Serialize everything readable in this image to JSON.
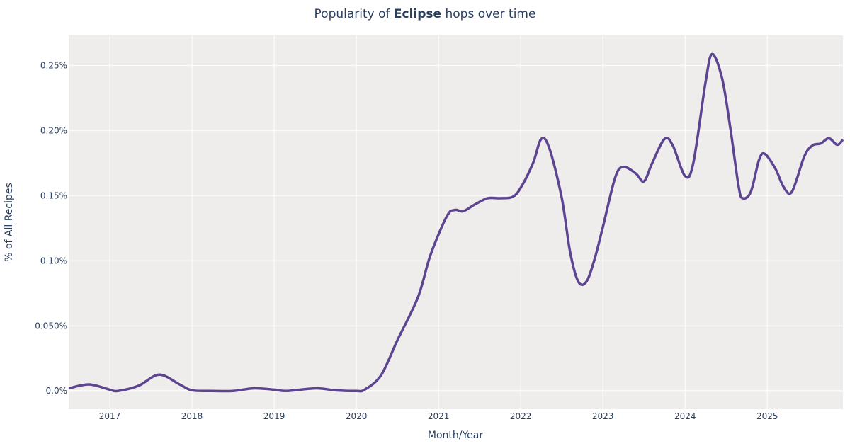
{
  "chart_data": {
    "type": "line",
    "title": [
      "Popularity of ",
      "Eclipse",
      " hops over time"
    ],
    "x_label": "Month/Year",
    "y_label": "% of All Recipes",
    "xlim": [
      2016.5,
      2025.92
    ],
    "xticks": [
      2017,
      2018,
      2019,
      2020,
      2021,
      2022,
      2023,
      2024,
      2025
    ],
    "ylim": [
      -0.014,
      0.273
    ],
    "yticks": [
      {
        "value": 0,
        "label": "0.0%"
      },
      {
        "value": 0.05,
        "label": "0.050%"
      },
      {
        "value": 0.1,
        "label": "0.10%"
      },
      {
        "value": 0.15,
        "label": "0.15%"
      },
      {
        "value": 0.2,
        "label": "0.20%"
      },
      {
        "value": 0.25,
        "label": "0.25%"
      }
    ],
    "grid": true,
    "x": [
      2016.5,
      2016.75,
      2017.0,
      2017.1,
      2017.35,
      2017.6,
      2017.85,
      2018.0,
      2018.25,
      2018.5,
      2018.75,
      2019.0,
      2019.15,
      2019.5,
      2019.75,
      2020.0,
      2020.1,
      2020.3,
      2020.5,
      2020.75,
      2020.9,
      2021.1,
      2021.2,
      2021.3,
      2021.45,
      2021.6,
      2021.75,
      2021.9,
      2022.0,
      2022.15,
      2022.25,
      2022.35,
      2022.5,
      2022.6,
      2022.7,
      2022.8,
      2022.9,
      2023.0,
      2023.15,
      2023.25,
      2023.4,
      2023.5,
      2023.6,
      2023.75,
      2023.85,
      2024.0,
      2024.1,
      2024.25,
      2024.33,
      2024.45,
      2024.55,
      2024.65,
      2024.7,
      2024.8,
      2024.9,
      2024.97,
      2025.1,
      2025.2,
      2025.3,
      2025.45,
      2025.55,
      2025.65,
      2025.75,
      2025.85,
      2025.92
    ],
    "series": [
      {
        "color": "#5c4490",
        "values": [
          0.002,
          0.005,
          0.001,
          0.0,
          0.004,
          0.0125,
          0.005,
          0.0005,
          0.0,
          0.0,
          0.002,
          0.001,
          0.0,
          0.002,
          0.0005,
          0.0,
          0.001,
          0.012,
          0.039,
          0.072,
          0.104,
          0.134,
          0.139,
          0.138,
          0.1435,
          0.148,
          0.148,
          0.149,
          0.156,
          0.175,
          0.1935,
          0.186,
          0.148,
          0.107,
          0.084,
          0.084,
          0.1015,
          0.126,
          0.164,
          0.172,
          0.167,
          0.161,
          0.175,
          0.1935,
          0.1885,
          0.165,
          0.175,
          0.2375,
          0.2587,
          0.24,
          0.202,
          0.1575,
          0.148,
          0.153,
          0.1775,
          0.182,
          0.1705,
          0.1565,
          0.153,
          0.18,
          0.1885,
          0.19,
          0.194,
          0.189,
          0.193
        ]
      }
    ]
  }
}
